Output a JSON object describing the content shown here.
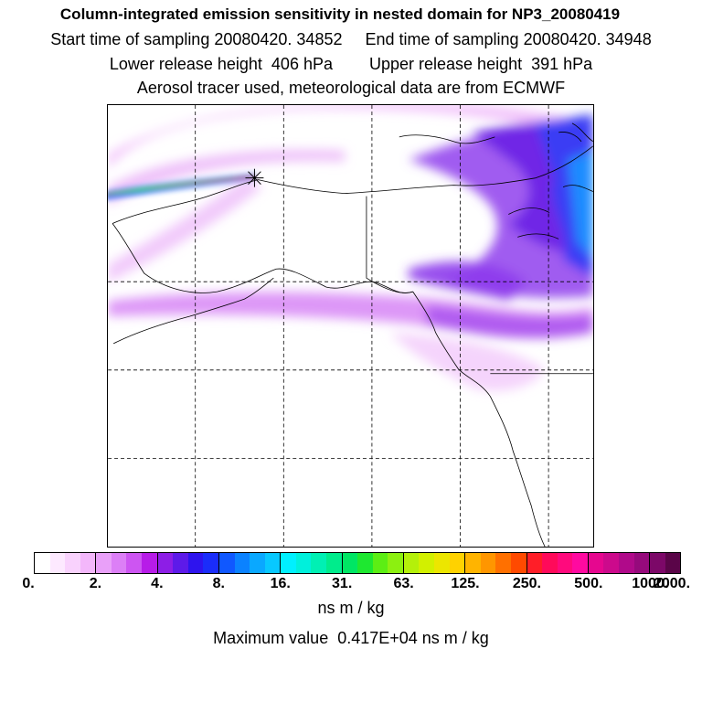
{
  "header": {
    "title": "Column-integrated emission sensitivity in nested domain for NP3_20080419",
    "line1": "Start time of sampling 20080420. 34852     End time of sampling 20080420. 34948",
    "line2": "Lower release height  406 hPa        Upper release height  391 hPa",
    "line3": "Aerosol tracer used, meteorological data are from ECMWF"
  },
  "colorbar": {
    "labels": [
      "0.",
      "2.",
      "4.",
      "8.",
      "16.",
      "31.",
      "63.",
      "125.",
      "250.",
      "500.",
      "1000.",
      "2000."
    ],
    "colors": [
      "#ffffff",
      "#fde9ff",
      "#f9d2fd",
      "#f3b7fb",
      "#e9a0f9",
      "#dc7ff6",
      "#cd55f2",
      "#b71ce8",
      "#8d1ee6",
      "#5d1ae9",
      "#2e14ee",
      "#1a2dfa",
      "#1058ff",
      "#0b82ff",
      "#0aa8ff",
      "#08c8ff",
      "#00f0ff",
      "#00f0dc",
      "#00f0b4",
      "#00ec8c",
      "#00e664",
      "#1ee830",
      "#5cee14",
      "#8cf010",
      "#b4f00a",
      "#d2f000",
      "#ece600",
      "#ffd200",
      "#ffb400",
      "#ff9600",
      "#ff7000",
      "#ff4a00",
      "#ff1e28",
      "#ff0a5a",
      "#ff0a7d",
      "#ff0aa0",
      "#e6078f",
      "#cc0a8c",
      "#b00a8a",
      "#960a7c",
      "#7c0868",
      "#5a0548"
    ],
    "units": "ns m / kg"
  },
  "maximum": "Maximum value  0.417E+04 ns m / kg"
}
